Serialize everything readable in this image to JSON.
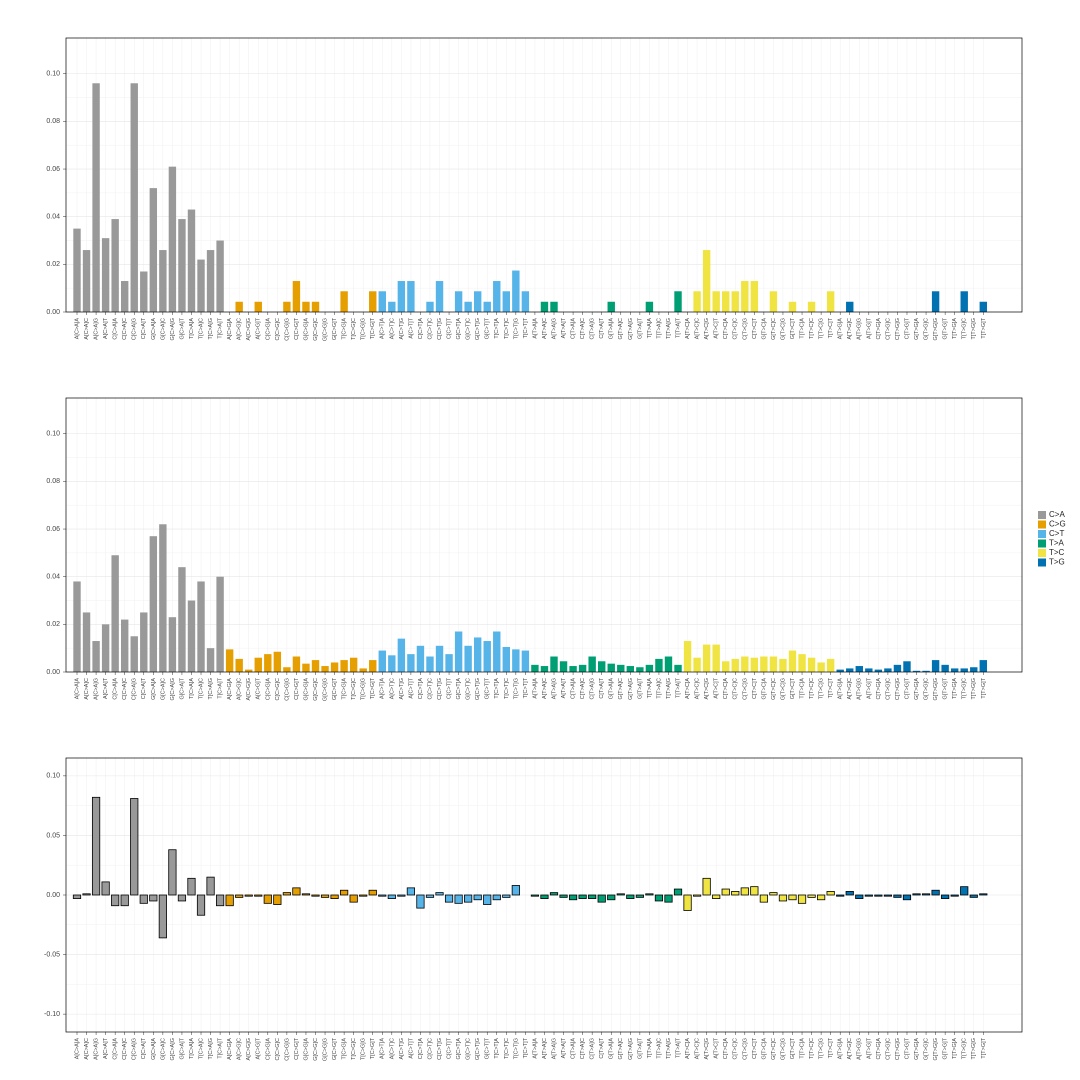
{
  "legend": {
    "position": "right",
    "items": [
      {
        "name": "C>A",
        "color": "#999999"
      },
      {
        "name": "C>G",
        "color": "#E69F00"
      },
      {
        "name": "C>T",
        "color": "#56B4E9"
      },
      {
        "name": "T>A",
        "color": "#009E73"
      },
      {
        "name": "T>C",
        "color": "#F0E442"
      },
      {
        "name": "T>G",
        "color": "#0072B2"
      }
    ]
  },
  "chart_data": [
    {
      "type": "bar",
      "grid": true,
      "categories": [
        "A[C>A]A",
        "A[C>A]C",
        "A[C>A]G",
        "A[C>A]T",
        "C[C>A]A",
        "C[C>A]C",
        "C[C>A]G",
        "C[C>A]T",
        "G[C>A]A",
        "G[C>A]C",
        "G[C>A]G",
        "G[C>A]T",
        "T[C>A]A",
        "T[C>A]C",
        "T[C>A]G",
        "T[C>A]T",
        "A[C>G]A",
        "A[C>G]C",
        "A[C>G]G",
        "A[C>G]T",
        "C[C>G]A",
        "C[C>G]C",
        "C[C>G]G",
        "C[C>G]T",
        "G[C>G]A",
        "G[C>G]C",
        "G[C>G]G",
        "G[C>G]T",
        "T[C>G]A",
        "T[C>G]C",
        "T[C>G]G",
        "T[C>G]T",
        "A[C>T]A",
        "A[C>T]C",
        "A[C>T]G",
        "A[C>T]T",
        "C[C>T]A",
        "C[C>T]C",
        "C[C>T]G",
        "C[C>T]T",
        "G[C>T]A",
        "G[C>T]C",
        "G[C>T]G",
        "G[C>T]T",
        "T[C>T]A",
        "T[C>T]C",
        "T[C>T]G",
        "T[C>T]T",
        "A[T>A]A",
        "A[T>A]C",
        "A[T>A]G",
        "A[T>A]T",
        "C[T>A]A",
        "C[T>A]C",
        "C[T>A]G",
        "C[T>A]T",
        "G[T>A]A",
        "G[T>A]C",
        "G[T>A]G",
        "G[T>A]T",
        "T[T>A]A",
        "T[T>A]C",
        "T[T>A]G",
        "T[T>A]T",
        "A[T>C]A",
        "A[T>C]C",
        "A[T>C]G",
        "A[T>C]T",
        "C[T>C]A",
        "C[T>C]C",
        "C[T>C]G",
        "C[T>C]T",
        "G[T>C]A",
        "G[T>C]C",
        "G[T>C]G",
        "G[T>C]T",
        "T[T>C]A",
        "T[T>C]C",
        "T[T>C]G",
        "T[T>C]T",
        "A[T>G]A",
        "A[T>G]C",
        "A[T>G]G",
        "A[T>G]T",
        "C[T>G]A",
        "C[T>G]C",
        "C[T>G]G",
        "C[T>G]T",
        "G[T>G]A",
        "G[T>G]C",
        "G[T>G]G",
        "G[T>G]T",
        "T[T>G]A",
        "T[T>G]C",
        "T[T>G]G",
        "T[T>G]T"
      ],
      "values": [
        0.035,
        0.026,
        0.096,
        0.031,
        0.039,
        0.013,
        0.096,
        0.017,
        0.052,
        0.026,
        0.061,
        0.039,
        0.043,
        0.022,
        0.026,
        0.03,
        0,
        0.0043,
        0,
        0.0043,
        0,
        0,
        0.0043,
        0.013,
        0.0043,
        0.0043,
        0,
        0,
        0.0087,
        0,
        0,
        0.0087,
        0.0087,
        0.0043,
        0.013,
        0.013,
        0,
        0.0043,
        0.013,
        0,
        0.0087,
        0.0043,
        0.0087,
        0.0043,
        0.013,
        0.0087,
        0.0174,
        0.0087,
        0,
        0.0043,
        0.0043,
        0,
        0,
        0,
        0,
        0,
        0.0043,
        0,
        0,
        0,
        0.0043,
        0,
        0,
        0.0087,
        0,
        0.0087,
        0.026,
        0.0087,
        0.0087,
        0.0087,
        0.013,
        0.013,
        0,
        0.0087,
        0,
        0.0043,
        0,
        0.0043,
        0,
        0.0087,
        0,
        0.0043,
        0,
        0,
        0,
        0,
        0,
        0,
        0,
        0,
        0.0087,
        0,
        0,
        0.0087,
        0,
        0.0043
      ],
      "ylim": [
        0,
        0.115
      ],
      "yticks": [
        {
          "value": 0,
          "label": "0.00"
        },
        {
          "value": 0.02,
          "label": "0.02"
        },
        {
          "value": 0.04,
          "label": "0.04"
        },
        {
          "value": 0.06,
          "label": "0.06"
        },
        {
          "value": 0.08,
          "label": "0.08"
        },
        {
          "value": 0.1,
          "label": "0.10"
        }
      ]
    },
    {
      "type": "bar",
      "grid": true,
      "categories": [
        "A[C>A]A",
        "A[C>A]C",
        "A[C>A]G",
        "A[C>A]T",
        "C[C>A]A",
        "C[C>A]C",
        "C[C>A]G",
        "C[C>A]T",
        "G[C>A]A",
        "G[C>A]C",
        "G[C>A]G",
        "G[C>A]T",
        "T[C>A]A",
        "T[C>A]C",
        "T[C>A]G",
        "T[C>A]T",
        "A[C>G]A",
        "A[C>G]C",
        "A[C>G]G",
        "A[C>G]T",
        "C[C>G]A",
        "C[C>G]C",
        "C[C>G]G",
        "C[C>G]T",
        "G[C>G]A",
        "G[C>G]C",
        "G[C>G]G",
        "G[C>G]T",
        "T[C>G]A",
        "T[C>G]C",
        "T[C>G]G",
        "T[C>G]T",
        "A[C>T]A",
        "A[C>T]C",
        "A[C>T]G",
        "A[C>T]T",
        "C[C>T]A",
        "C[C>T]C",
        "C[C>T]G",
        "C[C>T]T",
        "G[C>T]A",
        "G[C>T]C",
        "G[C>T]G",
        "G[C>T]T",
        "T[C>T]A",
        "T[C>T]C",
        "T[C>T]G",
        "T[C>T]T",
        "A[T>A]A",
        "A[T>A]C",
        "A[T>A]G",
        "A[T>A]T",
        "C[T>A]A",
        "C[T>A]C",
        "C[T>A]G",
        "C[T>A]T",
        "G[T>A]A",
        "G[T>A]C",
        "G[T>A]G",
        "G[T>A]T",
        "T[T>A]A",
        "T[T>A]C",
        "T[T>A]G",
        "T[T>A]T",
        "A[T>C]A",
        "A[T>C]C",
        "A[T>C]G",
        "A[T>C]T",
        "C[T>C]A",
        "C[T>C]C",
        "C[T>C]G",
        "C[T>C]T",
        "G[T>C]A",
        "G[T>C]C",
        "G[T>C]G",
        "G[T>C]T",
        "T[T>C]A",
        "T[T>C]C",
        "T[T>C]G",
        "T[T>C]T",
        "A[T>G]A",
        "A[T>G]C",
        "A[T>G]G",
        "A[T>G]T",
        "C[T>G]A",
        "C[T>G]C",
        "C[T>G]G",
        "C[T>G]T",
        "G[T>G]A",
        "G[T>G]C",
        "G[T>G]G",
        "G[T>G]T",
        "T[T>G]A",
        "T[T>G]C",
        "T[T>G]G",
        "T[T>G]T"
      ],
      "values": [
        0.038,
        0.025,
        0.013,
        0.02,
        0.049,
        0.022,
        0.015,
        0.025,
        0.057,
        0.062,
        0.023,
        0.044,
        0.03,
        0.038,
        0.01,
        0.04,
        0.0095,
        0.0055,
        0.001,
        0.006,
        0.0075,
        0.0085,
        0.002,
        0.0065,
        0.0035,
        0.005,
        0.0025,
        0.004,
        0.005,
        0.006,
        0.0015,
        0.005,
        0.009,
        0.007,
        0.014,
        0.0075,
        0.011,
        0.0065,
        0.011,
        0.0075,
        0.017,
        0.011,
        0.0145,
        0.013,
        0.017,
        0.0105,
        0.0095,
        0.009,
        0.003,
        0.0025,
        0.0065,
        0.0045,
        0.0025,
        0.003,
        0.0065,
        0.0045,
        0.0035,
        0.003,
        0.0025,
        0.002,
        0.003,
        0.0055,
        0.0065,
        0.003,
        0.013,
        0.006,
        0.0115,
        0.0115,
        0.0045,
        0.0055,
        0.0065,
        0.006,
        0.0065,
        0.0065,
        0.0055,
        0.009,
        0.0075,
        0.006,
        0.004,
        0.0055,
        0.001,
        0.0015,
        0.0025,
        0.0015,
        0.001,
        0.0015,
        0.003,
        0.0045,
        0.0005,
        0.0005,
        0.005,
        0.003,
        0.0015,
        0.0015,
        0.002,
        0.005
      ],
      "ylim": [
        0,
        0.115
      ],
      "yticks": [
        {
          "value": 0,
          "label": "0.00"
        },
        {
          "value": 0.02,
          "label": "0.02"
        },
        {
          "value": 0.04,
          "label": "0.04"
        },
        {
          "value": 0.06,
          "label": "0.06"
        },
        {
          "value": 0.08,
          "label": "0.08"
        },
        {
          "value": 0.1,
          "label": "0.10"
        }
      ]
    },
    {
      "type": "bar",
      "grid": true,
      "edgecolor": "#000000",
      "categories": [
        "A[C>A]A",
        "A[C>A]C",
        "A[C>A]G",
        "A[C>A]T",
        "C[C>A]A",
        "C[C>A]C",
        "C[C>A]G",
        "C[C>A]T",
        "G[C>A]A",
        "G[C>A]C",
        "G[C>A]G",
        "G[C>A]T",
        "T[C>A]A",
        "T[C>A]C",
        "T[C>A]G",
        "T[C>A]T",
        "A[C>G]A",
        "A[C>G]C",
        "A[C>G]G",
        "A[C>G]T",
        "C[C>G]A",
        "C[C>G]C",
        "C[C>G]G",
        "C[C>G]T",
        "G[C>G]A",
        "G[C>G]C",
        "G[C>G]G",
        "G[C>G]T",
        "T[C>G]A",
        "T[C>G]C",
        "T[C>G]G",
        "T[C>G]T",
        "A[C>T]A",
        "A[C>T]C",
        "A[C>T]G",
        "A[C>T]T",
        "C[C>T]A",
        "C[C>T]C",
        "C[C>T]G",
        "C[C>T]T",
        "G[C>T]A",
        "G[C>T]C",
        "G[C>T]G",
        "G[C>T]T",
        "T[C>T]A",
        "T[C>T]C",
        "T[C>T]G",
        "T[C>T]T",
        "A[T>A]A",
        "A[T>A]C",
        "A[T>A]G",
        "A[T>A]T",
        "C[T>A]A",
        "C[T>A]C",
        "C[T>A]G",
        "C[T>A]T",
        "G[T>A]A",
        "G[T>A]C",
        "G[T>A]G",
        "G[T>A]T",
        "T[T>A]A",
        "T[T>A]C",
        "T[T>A]G",
        "T[T>A]T",
        "A[T>C]A",
        "A[T>C]C",
        "A[T>C]G",
        "A[T>C]T",
        "C[T>C]A",
        "C[T>C]C",
        "C[T>C]G",
        "C[T>C]T",
        "G[T>C]A",
        "G[T>C]C",
        "G[T>C]G",
        "G[T>C]T",
        "T[T>C]A",
        "T[T>C]C",
        "T[T>C]G",
        "T[T>C]T",
        "A[T>G]A",
        "A[T>G]C",
        "A[T>G]G",
        "A[T>G]T",
        "C[T>G]A",
        "C[T>G]C",
        "C[T>G]G",
        "C[T>G]T",
        "G[T>G]A",
        "G[T>G]C",
        "G[T>G]G",
        "G[T>G]T",
        "T[T>G]A",
        "T[T>G]C",
        "T[T>G]G",
        "T[T>G]T"
      ],
      "values": [
        -0.003,
        0.001,
        0.082,
        0.011,
        -0.009,
        -0.009,
        0.081,
        -0.007,
        -0.005,
        -0.036,
        0.038,
        -0.005,
        0.014,
        -0.017,
        0.015,
        -0.009,
        -0.009,
        -0.002,
        -0.001,
        -0.001,
        -0.007,
        -0.008,
        0.002,
        0.006,
        0.001,
        -0.001,
        -0.002,
        -0.003,
        0.004,
        -0.006,
        -0.001,
        0.004,
        -0.001,
        -0.003,
        -0.001,
        0.006,
        -0.011,
        -0.002,
        0.002,
        -0.006,
        -0.007,
        -0.006,
        -0.004,
        -0.008,
        -0.004,
        -0.002,
        0.008,
        0,
        -0.001,
        -0.003,
        0.002,
        -0.002,
        -0.004,
        -0.003,
        -0.003,
        -0.006,
        -0.004,
        0.001,
        -0.003,
        -0.002,
        0.001,
        -0.005,
        -0.006,
        0.005,
        -0.013,
        -0.001,
        0.014,
        -0.003,
        0.005,
        0.003,
        0.006,
        0.007,
        -0.006,
        0.002,
        -0.005,
        -0.004,
        -0.007,
        -0.002,
        -0.004,
        0.003,
        -0.001,
        0.003,
        -0.003,
        -0.001,
        -0.001,
        -0.001,
        -0.002,
        -0.004,
        0.001,
        0.001,
        0.004,
        -0.003,
        -0.001,
        0.007,
        -0.002,
        0.001
      ],
      "ylim": [
        -0.115,
        0.115
      ],
      "yticks": [
        {
          "value": -0.1,
          "label": "-0.10"
        },
        {
          "value": -0.05,
          "label": "-0.05"
        },
        {
          "value": 0,
          "label": "0.00"
        },
        {
          "value": 0.05,
          "label": "0.05"
        },
        {
          "value": 0.1,
          "label": "0.10"
        }
      ]
    }
  ]
}
